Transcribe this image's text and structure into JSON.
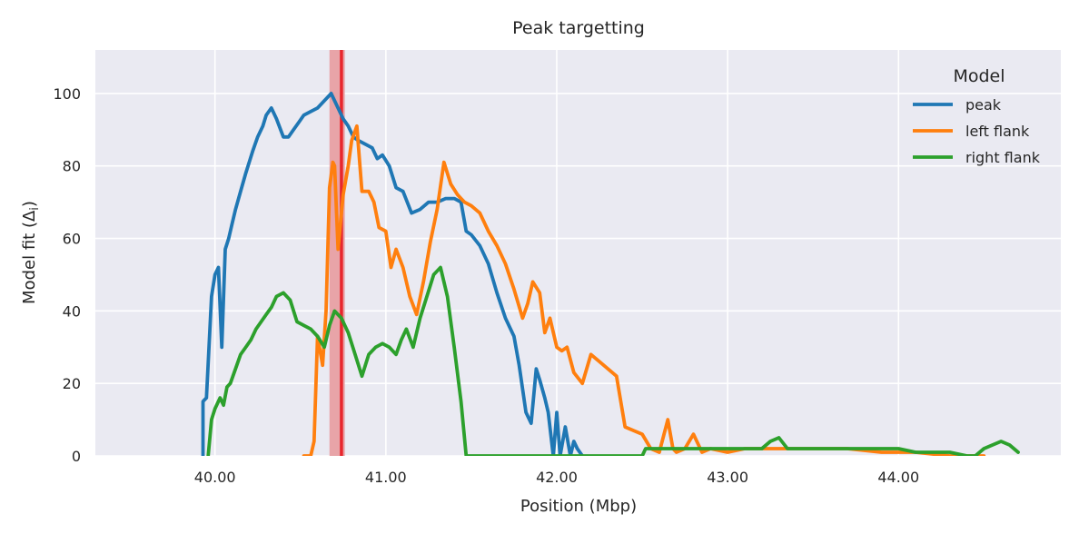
{
  "chart_data": {
    "type": "line",
    "title": "Peak targetting",
    "xlabel": "Position (Mbp)",
    "ylabel": "Model fit (Δ",
    "ylabel_sub": "i",
    "ylabel_close": ")",
    "xlim": [
      39.3,
      44.95
    ],
    "ylim": [
      0,
      112
    ],
    "xticks": [
      40.0,
      41.0,
      42.0,
      43.0,
      44.0
    ],
    "xtick_labels": [
      "40.00",
      "41.00",
      "42.00",
      "43.00",
      "44.00"
    ],
    "yticks": [
      0,
      20,
      40,
      60,
      80,
      100
    ],
    "ytick_labels": [
      "0",
      "20",
      "40",
      "60",
      "80",
      "100"
    ],
    "grid": true,
    "legend": {
      "title": "Model",
      "placement": "top-right"
    },
    "annotations": [
      {
        "type": "vspan",
        "x0": 40.67,
        "x1": 40.76,
        "color": "#e8a4a8"
      },
      {
        "type": "vline",
        "x": 40.74,
        "color": "#e8262c"
      }
    ],
    "series": [
      {
        "name": "peak",
        "color": "#1f77b4",
        "x": [
          39.93,
          39.93,
          39.95,
          39.98,
          40.0,
          40.02,
          40.04,
          40.06,
          40.08,
          40.1,
          40.12,
          40.15,
          40.18,
          40.22,
          40.25,
          40.28,
          40.3,
          40.33,
          40.36,
          40.4,
          40.43,
          40.46,
          40.49,
          40.52,
          40.56,
          40.6,
          40.64,
          40.68,
          40.72,
          40.75,
          40.78,
          40.81,
          40.84,
          40.88,
          40.92,
          40.95,
          40.98,
          41.02,
          41.06,
          41.1,
          41.15,
          41.2,
          41.25,
          41.3,
          41.35,
          41.4,
          41.44,
          41.47,
          41.5,
          41.55,
          41.6,
          41.65,
          41.7,
          41.75,
          41.78,
          41.82,
          41.85,
          41.88,
          41.9,
          41.93,
          41.95,
          41.98,
          42.0,
          42.02,
          42.05,
          42.08,
          42.1,
          42.12,
          42.15
        ],
        "y": [
          0,
          15,
          16,
          44,
          50,
          52,
          30,
          57,
          60,
          64,
          68,
          73,
          78,
          84,
          88,
          91,
          94,
          96,
          93,
          88,
          88,
          90,
          92,
          94,
          95,
          96,
          98,
          100,
          96,
          93,
          91,
          88,
          87,
          86,
          85,
          82,
          83,
          80,
          74,
          73,
          67,
          68,
          70,
          70,
          71,
          71,
          70,
          62,
          61,
          58,
          53,
          45,
          38,
          33,
          25,
          12,
          9,
          24,
          21,
          16,
          12,
          0,
          12,
          0,
          8,
          0,
          4,
          2,
          0
        ]
      },
      {
        "name": "left flank",
        "color": "#ff7f0e",
        "x": [
          40.52,
          40.56,
          40.58,
          40.6,
          40.63,
          40.65,
          40.67,
          40.69,
          40.7,
          40.72,
          40.75,
          40.78,
          40.8,
          40.83,
          40.86,
          40.9,
          40.93,
          40.96,
          41.0,
          41.03,
          41.06,
          41.1,
          41.14,
          41.18,
          41.22,
          41.26,
          41.3,
          41.34,
          41.38,
          41.42,
          41.46,
          41.5,
          41.55,
          41.6,
          41.65,
          41.7,
          41.75,
          41.8,
          41.83,
          41.86,
          41.9,
          41.93,
          41.96,
          42.0,
          42.03,
          42.06,
          42.1,
          42.15,
          42.2,
          42.25,
          42.3,
          42.35,
          42.4,
          42.45,
          42.5,
          42.55,
          42.6,
          42.65,
          42.68,
          42.7,
          42.75,
          42.8,
          42.85,
          42.9,
          43.0,
          43.1,
          43.2,
          43.3,
          43.5,
          43.7,
          43.9,
          44.1,
          44.3,
          44.5
        ],
        "y": [
          0,
          0,
          4,
          33,
          25,
          40,
          74,
          81,
          80,
          57,
          72,
          80,
          87,
          91,
          73,
          73,
          70,
          63,
          62,
          52,
          57,
          52,
          44,
          39,
          48,
          59,
          68,
          81,
          75,
          72,
          70,
          69,
          67,
          62,
          58,
          53,
          46,
          38,
          42,
          48,
          45,
          34,
          38,
          30,
          29,
          30,
          23,
          20,
          28,
          26,
          24,
          22,
          8,
          7,
          6,
          2,
          1,
          10,
          2,
          1,
          2,
          6,
          1,
          2,
          1,
          2,
          2,
          2,
          2,
          2,
          1,
          1,
          0,
          0
        ]
      },
      {
        "name": "right flank",
        "color": "#2ca02c",
        "x": [
          39.96,
          39.98,
          40.0,
          40.03,
          40.05,
          40.07,
          40.09,
          40.12,
          40.15,
          40.18,
          40.21,
          40.24,
          40.27,
          40.3,
          40.33,
          40.36,
          40.4,
          40.44,
          40.48,
          40.52,
          40.56,
          40.6,
          40.64,
          40.67,
          40.7,
          40.74,
          40.78,
          40.82,
          40.86,
          40.9,
          40.94,
          40.98,
          41.02,
          41.06,
          41.09,
          41.12,
          41.16,
          41.2,
          41.24,
          41.28,
          41.32,
          41.36,
          41.4,
          41.44,
          41.47,
          42.5,
          42.52,
          42.6,
          42.7,
          42.8,
          42.9,
          43.0,
          43.1,
          43.2,
          43.25,
          43.3,
          43.35,
          43.4,
          43.5,
          43.6,
          43.7,
          43.8,
          43.9,
          44.0,
          44.1,
          44.2,
          44.3,
          44.4,
          44.45,
          44.5,
          44.55,
          44.6,
          44.65,
          44.7
        ],
        "y": [
          0,
          10,
          13,
          16,
          14,
          19,
          20,
          24,
          28,
          30,
          32,
          35,
          37,
          39,
          41,
          44,
          45,
          43,
          37,
          36,
          35,
          33,
          30,
          36,
          40,
          38,
          34,
          28,
          22,
          28,
          30,
          31,
          30,
          28,
          32,
          35,
          30,
          38,
          44,
          50,
          52,
          44,
          30,
          15,
          0,
          0,
          2,
          2,
          2,
          2,
          2,
          2,
          2,
          2,
          4,
          5,
          2,
          2,
          2,
          2,
          2,
          2,
          2,
          2,
          1,
          1,
          1,
          0,
          0,
          2,
          3,
          4,
          3,
          1
        ]
      }
    ]
  }
}
